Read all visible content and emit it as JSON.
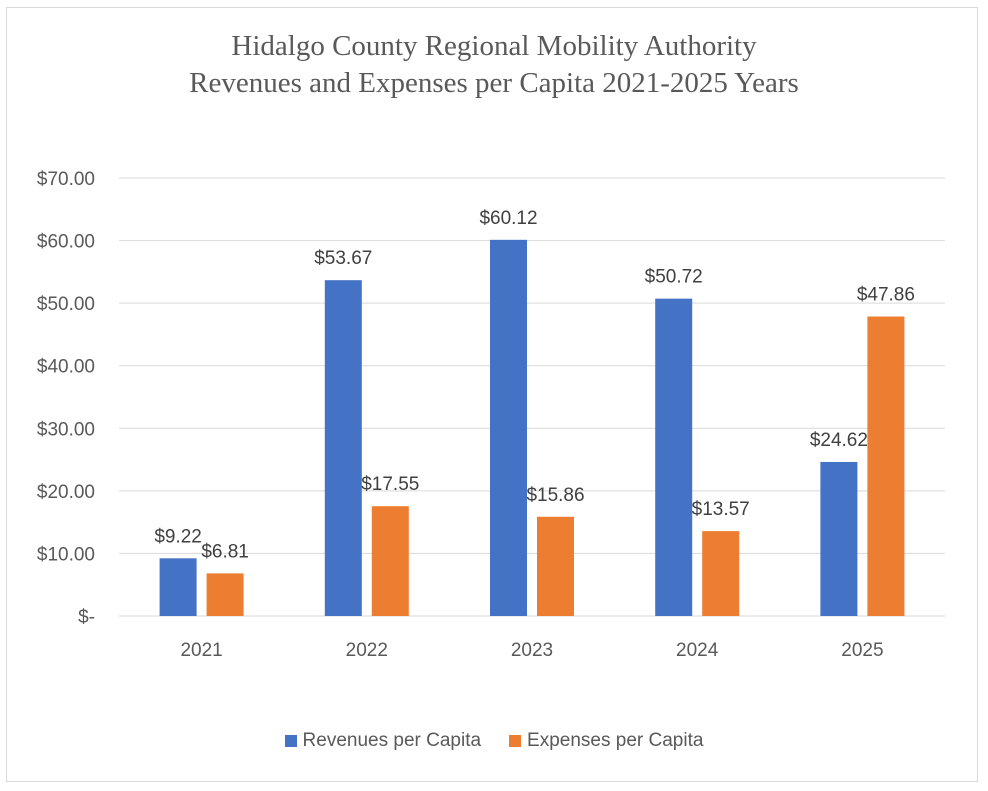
{
  "chart_data": {
    "type": "bar",
    "title_line1": "Hidalgo County Regional Mobility Authority",
    "title_line2": "Revenues and Expenses per Capita 2021-2025 Years",
    "categories": [
      "2021",
      "2022",
      "2023",
      "2024",
      "2025"
    ],
    "series": [
      {
        "name": "Revenues per Capita",
        "color": "#4472c4",
        "values": [
          9.22,
          53.67,
          60.12,
          50.72,
          24.62
        ],
        "labels": [
          "$9.22",
          "$53.67",
          "$60.12",
          "$50.72",
          "$24.62"
        ]
      },
      {
        "name": "Expenses per Capita",
        "color": "#ed7d31",
        "values": [
          6.81,
          17.55,
          15.86,
          13.57,
          47.86
        ],
        "labels": [
          "$6.81",
          "$17.55",
          "$15.86",
          "$13.57",
          "$47.86"
        ]
      }
    ],
    "y_ticks": [
      0,
      10,
      20,
      30,
      40,
      50,
      60,
      70
    ],
    "y_tick_labels": [
      "$-",
      "$10.00",
      "$20.00",
      "$30.00",
      "$40.00",
      "$50.00",
      "$60.00",
      "$70.00"
    ],
    "ylim": [
      0,
      70
    ],
    "grid": true,
    "legend_position": "bottom"
  }
}
